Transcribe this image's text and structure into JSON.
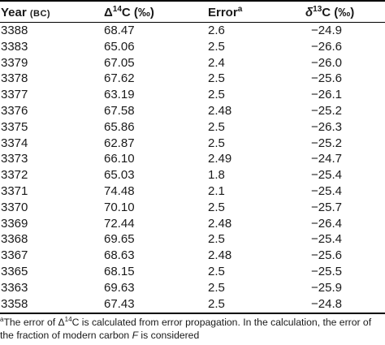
{
  "header": {
    "year": "Year",
    "year_unit": "(BC)",
    "d14c_prefix": "Δ",
    "d14c_sup": "14",
    "d14c_suffix": "C (‰)",
    "error": "Error",
    "error_sup": "a",
    "d13c_prefix": "δ",
    "d13c_sup": "13",
    "d13c_suffix": "C (‰)"
  },
  "rows": [
    {
      "year": "3388",
      "d14c": "68.47",
      "error": "2.6",
      "d13c": "−24.9"
    },
    {
      "year": "3383",
      "d14c": "65.06",
      "error": "2.5",
      "d13c": "−26.6"
    },
    {
      "year": "3379",
      "d14c": "67.05",
      "error": "2.4",
      "d13c": "−26.0"
    },
    {
      "year": "3378",
      "d14c": "67.62",
      "error": "2.5",
      "d13c": "−25.6"
    },
    {
      "year": "3377",
      "d14c": "63.19",
      "error": "2.5",
      "d13c": "−26.1"
    },
    {
      "year": "3376",
      "d14c": "67.58",
      "error": "2.48",
      "d13c": "−25.2"
    },
    {
      "year": "3375",
      "d14c": "65.86",
      "error": "2.5",
      "d13c": "−26.3"
    },
    {
      "year": "3374",
      "d14c": "62.87",
      "error": "2.5",
      "d13c": "−25.2"
    },
    {
      "year": "3373",
      "d14c": "66.10",
      "error": "2.49",
      "d13c": "−24.7"
    },
    {
      "year": "3372",
      "d14c": "65.03",
      "error": "1.8",
      "d13c": "−25.4"
    },
    {
      "year": "3371",
      "d14c": "74.48",
      "error": "2.1",
      "d13c": "−25.4"
    },
    {
      "year": "3370",
      "d14c": "70.10",
      "error": "2.5",
      "d13c": "−25.7"
    },
    {
      "year": "3369",
      "d14c": "72.44",
      "error": "2.48",
      "d13c": "−26.4"
    },
    {
      "year": "3368",
      "d14c": "69.65",
      "error": "2.5",
      "d13c": "−25.4"
    },
    {
      "year": "3367",
      "d14c": "68.63",
      "error": "2.48",
      "d13c": "−25.6"
    },
    {
      "year": "3365",
      "d14c": "68.15",
      "error": "2.5",
      "d13c": "−25.5"
    },
    {
      "year": "3363",
      "d14c": "69.63",
      "error": "2.5",
      "d13c": "−25.9"
    },
    {
      "year": "3358",
      "d14c": "67.43",
      "error": "2.5",
      "d13c": "−24.8"
    }
  ],
  "footnote": {
    "marker": "a",
    "text_1": "The error of Δ",
    "text_1_sup": "14",
    "text_2": "C is calculated from error propagation. In the calculation, the error of the fraction of modern carbon ",
    "text_f": "F",
    "text_3": " is considered"
  }
}
